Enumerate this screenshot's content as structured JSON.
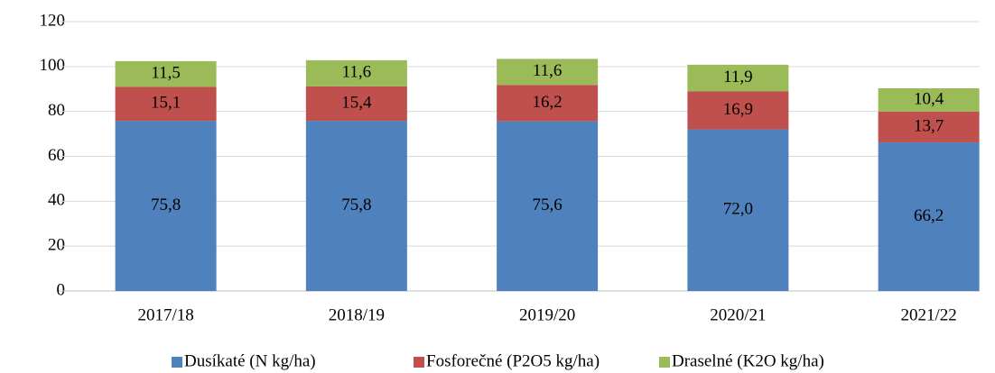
{
  "chart_data": {
    "type": "stacked_bar",
    "categories": [
      "2017/18",
      "2018/19",
      "2019/20",
      "2020/21",
      "2021/22"
    ],
    "series": [
      {
        "name": "Dusíkaté (N kg/ha)",
        "color": "#4f81bd",
        "values": [
          75.8,
          75.8,
          75.6,
          72.0,
          66.2
        ],
        "value_labels": [
          "75,8",
          "75,8",
          "75,6",
          "72,0",
          "66,2"
        ]
      },
      {
        "name": "Fosforečné (P2O5 kg/ha)",
        "color": "#c0504d",
        "values": [
          15.1,
          15.4,
          16.2,
          16.9,
          13.7
        ],
        "value_labels": [
          "15,1",
          "15,4",
          "16,2",
          "16,9",
          "13,7"
        ]
      },
      {
        "name": "Draselné (K2O kg/ha)",
        "color": "#9bbb59",
        "values": [
          11.5,
          11.6,
          11.6,
          11.9,
          10.4
        ],
        "value_labels": [
          "11,5",
          "11,6",
          "11,6",
          "11,9",
          "10,4"
        ]
      }
    ],
    "ylim": [
      0,
      120
    ],
    "yticks": [
      0,
      20,
      40,
      60,
      80,
      100,
      120
    ],
    "grid": true,
    "legend": "bottom"
  }
}
